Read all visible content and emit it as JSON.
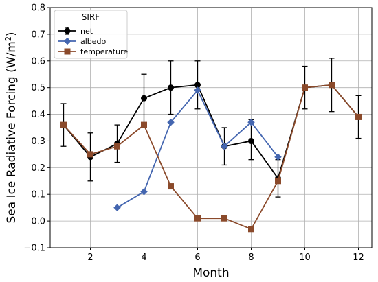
{
  "chart_data": {
    "type": "line",
    "title": "",
    "xlabel": "Month",
    "ylabel": "Sea Ice Radiative Forcing (W/m²)",
    "ylabel_main": "Sea Ice Radiative Forcing (W/m",
    "ylabel_sup": "2",
    "ylabel_end": ")",
    "xlim": [
      0.5,
      12.5
    ],
    "ylim": [
      -0.1,
      0.8
    ],
    "xticks": [
      2,
      4,
      6,
      8,
      10,
      12
    ],
    "yticks": [
      -0.1,
      0.0,
      0.1,
      0.2,
      0.3,
      0.4,
      0.5,
      0.6,
      0.7,
      0.8
    ],
    "ytick_labels": [
      "−0.1",
      "0.0",
      "0.1",
      "0.2",
      "0.3",
      "0.4",
      "0.5",
      "0.6",
      "0.7",
      "0.8"
    ],
    "grid": true,
    "legend": {
      "title": "SIRF",
      "placement": "top-left",
      "entries": [
        "net",
        "albedo",
        "temperature"
      ]
    },
    "series": [
      {
        "name": "net",
        "color": "#000000",
        "marker": "circle",
        "x": [
          1,
          2,
          3,
          4,
          5,
          6,
          7,
          8,
          9,
          10,
          11,
          12
        ],
        "values": [
          0.36,
          0.24,
          0.29,
          0.46,
          0.5,
          0.51,
          0.28,
          0.3,
          0.16,
          0.5,
          0.51,
          0.39
        ],
        "err_low": [
          0.28,
          0.15,
          0.22,
          0.36,
          0.4,
          0.42,
          0.21,
          0.23,
          0.09,
          0.42,
          0.41,
          0.31
        ],
        "err_high": [
          0.44,
          0.33,
          0.36,
          0.55,
          0.6,
          0.6,
          0.35,
          0.38,
          0.23,
          0.58,
          0.61,
          0.47
        ]
      },
      {
        "name": "albedo",
        "color": "#4466b0",
        "marker": "diamond",
        "x": [
          3,
          4,
          5,
          6,
          7,
          8,
          9
        ],
        "values": [
          0.05,
          0.11,
          0.37,
          0.49,
          0.28,
          0.37,
          0.24
        ]
      },
      {
        "name": "temperature",
        "color": "#8b4a2b",
        "marker": "square",
        "x": [
          1,
          2,
          3,
          4,
          5,
          6,
          7,
          8,
          9,
          10,
          11,
          12
        ],
        "values": [
          0.36,
          0.25,
          0.28,
          0.36,
          0.13,
          0.01,
          0.01,
          -0.03,
          0.15,
          0.5,
          0.51,
          0.39
        ]
      }
    ]
  }
}
